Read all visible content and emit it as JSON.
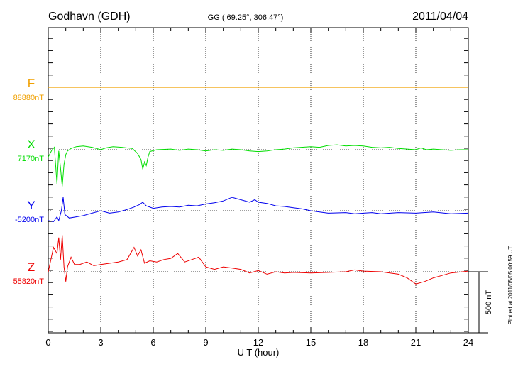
{
  "header": {
    "station": "Godhavn (GDH)",
    "coords": "GG ( 69.25°, 306.47°)",
    "date": "2011/04/04"
  },
  "plotted": "Plotted at 2011/05/05 00:59 UT",
  "scale_label": "500 nT",
  "chart_data": {
    "type": "line",
    "xlabel": "U T (hour)",
    "xlim": [
      0,
      24
    ],
    "xticks": [
      "0",
      "3",
      "6",
      "9",
      "12",
      "15",
      "18",
      "21",
      "24"
    ],
    "grid": true,
    "scale_nT_per_tick": 100,
    "series": [
      {
        "name": "F",
        "baseline": "88880nT",
        "color": "#f0a000",
        "points": [
          [
            0,
            0
          ],
          [
            24,
            0
          ]
        ]
      },
      {
        "name": "X",
        "baseline": "7170nT",
        "color": "#00dd00",
        "points": [
          [
            0,
            -60
          ],
          [
            0.2,
            -5
          ],
          [
            0.35,
            20
          ],
          [
            0.5,
            -280
          ],
          [
            0.6,
            -10
          ],
          [
            0.7,
            -150
          ],
          [
            0.8,
            -300
          ],
          [
            0.9,
            -120
          ],
          [
            1.0,
            -40
          ],
          [
            1.1,
            -10
          ],
          [
            1.3,
            10
          ],
          [
            1.6,
            25
          ],
          [
            2.0,
            30
          ],
          [
            2.5,
            20
          ],
          [
            3.0,
            0
          ],
          [
            3.3,
            15
          ],
          [
            3.7,
            25
          ],
          [
            4.2,
            20
          ],
          [
            4.8,
            10
          ],
          [
            5.1,
            -30
          ],
          [
            5.3,
            -80
          ],
          [
            5.4,
            -160
          ],
          [
            5.5,
            -100
          ],
          [
            5.6,
            -130
          ],
          [
            5.7,
            -60
          ],
          [
            5.8,
            -15
          ],
          [
            6.2,
            0
          ],
          [
            7.0,
            5
          ],
          [
            7.5,
            -5
          ],
          [
            8.0,
            5
          ],
          [
            8.5,
            0
          ],
          [
            9.0,
            -10
          ],
          [
            9.5,
            0
          ],
          [
            10.0,
            -5
          ],
          [
            10.5,
            5
          ],
          [
            11.0,
            0
          ],
          [
            11.5,
            -10
          ],
          [
            12.0,
            -15
          ],
          [
            12.5,
            -10
          ],
          [
            13.0,
            0
          ],
          [
            13.5,
            5
          ],
          [
            14.0,
            15
          ],
          [
            15.0,
            25
          ],
          [
            15.5,
            20
          ],
          [
            16.0,
            35
          ],
          [
            16.5,
            40
          ],
          [
            17.0,
            30
          ],
          [
            17.5,
            35
          ],
          [
            18.0,
            30
          ],
          [
            18.5,
            20
          ],
          [
            19.0,
            15
          ],
          [
            19.5,
            20
          ],
          [
            20.0,
            10
          ],
          [
            20.5,
            5
          ],
          [
            21.0,
            0
          ],
          [
            21.3,
            15
          ],
          [
            21.6,
            0
          ],
          [
            22.0,
            5
          ],
          [
            23.0,
            -5
          ],
          [
            23.5,
            0
          ],
          [
            24,
            0
          ]
        ]
      },
      {
        "name": "Y",
        "baseline": "-5200nT",
        "color": "#0000ee",
        "points": [
          [
            0,
            -80
          ],
          [
            0.3,
            -90
          ],
          [
            0.5,
            -50
          ],
          [
            0.6,
            -80
          ],
          [
            0.75,
            0
          ],
          [
            0.85,
            110
          ],
          [
            0.95,
            -30
          ],
          [
            1.2,
            -60
          ],
          [
            1.6,
            -50
          ],
          [
            2.0,
            -40
          ],
          [
            2.5,
            -20
          ],
          [
            3.0,
            0
          ],
          [
            3.5,
            -20
          ],
          [
            4.0,
            -10
          ],
          [
            4.5,
            10
          ],
          [
            4.9,
            30
          ],
          [
            5.2,
            50
          ],
          [
            5.4,
            70
          ],
          [
            5.6,
            40
          ],
          [
            6.0,
            20
          ],
          [
            6.5,
            30
          ],
          [
            7.0,
            35
          ],
          [
            7.5,
            30
          ],
          [
            8.0,
            45
          ],
          [
            8.5,
            40
          ],
          [
            9.0,
            55
          ],
          [
            9.5,
            65
          ],
          [
            10.0,
            80
          ],
          [
            10.5,
            110
          ],
          [
            11.0,
            90
          ],
          [
            11.5,
            70
          ],
          [
            11.8,
            90
          ],
          [
            12.0,
            70
          ],
          [
            12.5,
            60
          ],
          [
            13.0,
            40
          ],
          [
            13.5,
            35
          ],
          [
            14.0,
            25
          ],
          [
            14.5,
            15
          ],
          [
            15.0,
            0
          ],
          [
            15.5,
            -10
          ],
          [
            16.0,
            -20
          ],
          [
            17.0,
            -15
          ],
          [
            17.5,
            -25
          ],
          [
            18.0,
            -20
          ],
          [
            18.5,
            -15
          ],
          [
            19.0,
            -25
          ],
          [
            20.0,
            -15
          ],
          [
            21.0,
            -20
          ],
          [
            22.0,
            -10
          ],
          [
            23.0,
            -25
          ],
          [
            24,
            -20
          ]
        ]
      },
      {
        "name": "Z",
        "baseline": "55820nT",
        "color": "#ee0000",
        "points": [
          [
            0,
            0
          ],
          [
            0.3,
            200
          ],
          [
            0.5,
            150
          ],
          [
            0.6,
            280
          ],
          [
            0.7,
            100
          ],
          [
            0.8,
            300
          ],
          [
            0.9,
            40
          ],
          [
            1.0,
            -80
          ],
          [
            1.1,
            40
          ],
          [
            1.3,
            120
          ],
          [
            1.5,
            60
          ],
          [
            1.8,
            60
          ],
          [
            2.2,
            80
          ],
          [
            2.6,
            50
          ],
          [
            3.0,
            60
          ],
          [
            3.5,
            70
          ],
          [
            4.0,
            80
          ],
          [
            4.5,
            100
          ],
          [
            4.9,
            200
          ],
          [
            5.1,
            130
          ],
          [
            5.3,
            180
          ],
          [
            5.5,
            70
          ],
          [
            5.8,
            90
          ],
          [
            6.2,
            80
          ],
          [
            6.6,
            100
          ],
          [
            7.0,
            110
          ],
          [
            7.4,
            150
          ],
          [
            7.8,
            80
          ],
          [
            8.2,
            100
          ],
          [
            8.6,
            120
          ],
          [
            9.0,
            40
          ],
          [
            9.5,
            20
          ],
          [
            10.0,
            40
          ],
          [
            10.5,
            30
          ],
          [
            11.0,
            20
          ],
          [
            11.5,
            -10
          ],
          [
            12.0,
            10
          ],
          [
            12.5,
            -20
          ],
          [
            13.0,
            0
          ],
          [
            13.5,
            -10
          ],
          [
            14.0,
            -5
          ],
          [
            15.0,
            -10
          ],
          [
            16.0,
            -5
          ],
          [
            17.0,
            0
          ],
          [
            17.5,
            15
          ],
          [
            18.0,
            5
          ],
          [
            19.0,
            0
          ],
          [
            20.0,
            -20
          ],
          [
            20.5,
            -50
          ],
          [
            21.0,
            -100
          ],
          [
            21.5,
            -80
          ],
          [
            22.0,
            -50
          ],
          [
            22.5,
            -30
          ],
          [
            23.0,
            -10
          ],
          [
            24,
            5
          ]
        ]
      }
    ]
  }
}
